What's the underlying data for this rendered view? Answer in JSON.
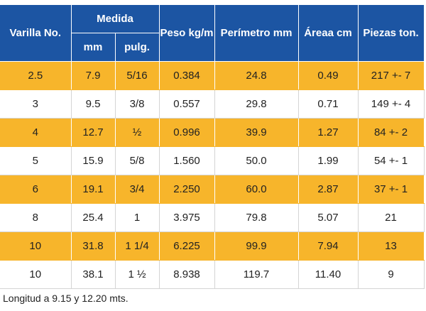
{
  "headers": {
    "varilla": "Varilla No.",
    "medida": "Medida",
    "mm": "mm",
    "pulg": "pulg.",
    "peso": "Peso kg/m",
    "perimetro": "Perímetro mm",
    "area": "Áreaa cm",
    "piezas": "Piezas ton."
  },
  "rows": [
    {
      "varilla": "2.5",
      "mm": "7.9",
      "pulg": "5/16",
      "peso": "0.384",
      "perimetro": "24.8",
      "area": "0.49",
      "piezas": "217 +- 7"
    },
    {
      "varilla": "3",
      "mm": "9.5",
      "pulg": "3/8",
      "peso": "0.557",
      "perimetro": "29.8",
      "area": "0.71",
      "piezas": "149 +- 4"
    },
    {
      "varilla": "4",
      "mm": "12.7",
      "pulg": "½",
      "peso": "0.996",
      "perimetro": "39.9",
      "area": "1.27",
      "piezas": "84 +- 2"
    },
    {
      "varilla": "5",
      "mm": "15.9",
      "pulg": "5/8",
      "peso": "1.560",
      "perimetro": "50.0",
      "area": "1.99",
      "piezas": "54 +- 1"
    },
    {
      "varilla": "6",
      "mm": "19.1",
      "pulg": "3/4",
      "peso": "2.250",
      "perimetro": "60.0",
      "area": "2.87",
      "piezas": "37 +- 1"
    },
    {
      "varilla": "8",
      "mm": "25.4",
      "pulg": "1",
      "peso": "3.975",
      "perimetro": "79.8",
      "area": "5.07",
      "piezas": "21"
    },
    {
      "varilla": "10",
      "mm": "31.8",
      "pulg": "1 1/4",
      "peso": "6.225",
      "perimetro": "99.9",
      "area": "7.94",
      "piezas": "13"
    },
    {
      "varilla": "10",
      "mm": "38.1",
      "pulg": "1 ½",
      "peso": "8.938",
      "perimetro": "119.7",
      "area": "11.40",
      "piezas": "9"
    }
  ],
  "footnote": "Longitud a 9.15 y 12.20 mts.",
  "colors": {
    "header_bg": "#1c55a3",
    "stripe": "#f7b52b"
  }
}
